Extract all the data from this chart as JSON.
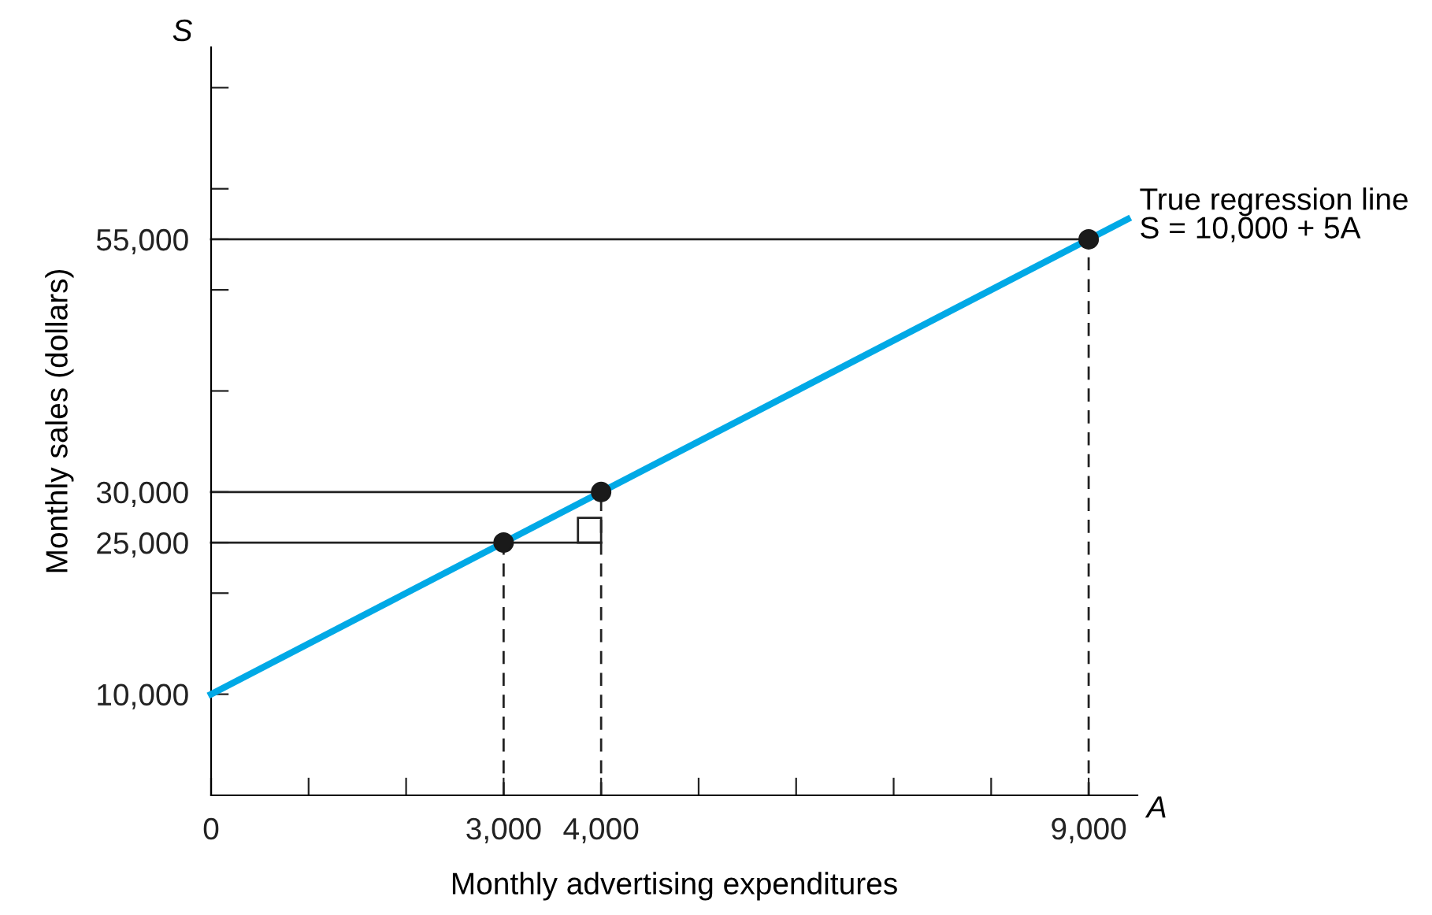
{
  "chart_data": {
    "type": "line",
    "xlabel": "Monthly advertising expenditures",
    "ylabel": "Monthly sales (dollars)",
    "annotations": [
      "S",
      "A",
      {
        "text": "S = 10,000 + 5A",
        "x": 9400,
        "y": 57000
      }
    ],
    "xlim": [
      0,
      9500
    ],
    "ylim": [
      0,
      74000
    ],
    "xticks": [
      0,
      {
        "value": 1000,
        "label": null
      },
      {
        "value": 2000,
        "label": null
      },
      {
        "value": 3000,
        "label": "3,000"
      },
      {
        "value": 4000,
        "label": "4,000"
      },
      {
        "value": 5000,
        "label": null
      },
      {
        "value": 6000,
        "label": null
      },
      {
        "value": 7000,
        "label": null
      },
      {
        "value": 8000,
        "label": null
      },
      {
        "value": 9000,
        "label": "9,000"
      }
    ],
    "yticks": [
      {
        "value": 10000,
        "label": "10,000"
      },
      {
        "value": 20000,
        "label": null
      },
      {
        "value": 25000,
        "label": "25,000"
      },
      {
        "value": 30000,
        "label": "30,000"
      },
      {
        "value": 40000,
        "label": null
      },
      {
        "value": 50000,
        "label": null
      },
      {
        "value": 55000,
        "label": "55,000"
      },
      {
        "value": 60000,
        "label": null
      },
      {
        "value": 70000,
        "label": null
      }
    ],
    "grid": false,
    "legend": false,
    "ref_lines": [
      {
        "axis": "x",
        "value": 3000,
        "color": "#222222",
        "line_style": "dashed"
      },
      {
        "axis": "x",
        "value": 4000,
        "color": "#222222",
        "line_style": "dashed"
      },
      {
        "axis": "x",
        "value": 9000,
        "color": "#222222",
        "line_style": "dashed"
      }
    ],
    "series": [
      {
        "color": "#222222",
        "line_style": "solid",
        "x": [
          0,
          4000
        ],
        "values": [
          25000,
          25000
        ]
      },
      {
        "color": "#222222",
        "line_style": "solid",
        "x": [
          0,
          4000
        ],
        "values": [
          30000,
          30000
        ]
      },
      {
        "color": "#222222",
        "line_style": "solid",
        "x": [
          0,
          9000
        ],
        "values": [
          55000,
          55000
        ]
      },
      {
        "name": "True regression line",
        "type": "line",
        "color": "#00a9e6",
        "line_style": "solid",
        "x": [
          0,
          9400
        ],
        "values": [
          10000,
          57000
        ]
      },
      {
        "type": "scatter",
        "color": "#1a1a1a",
        "marker": "circle",
        "x": [
          3000,
          4000,
          9000
        ],
        "values": [
          25000,
          30000,
          55000
        ]
      }
    ]
  }
}
